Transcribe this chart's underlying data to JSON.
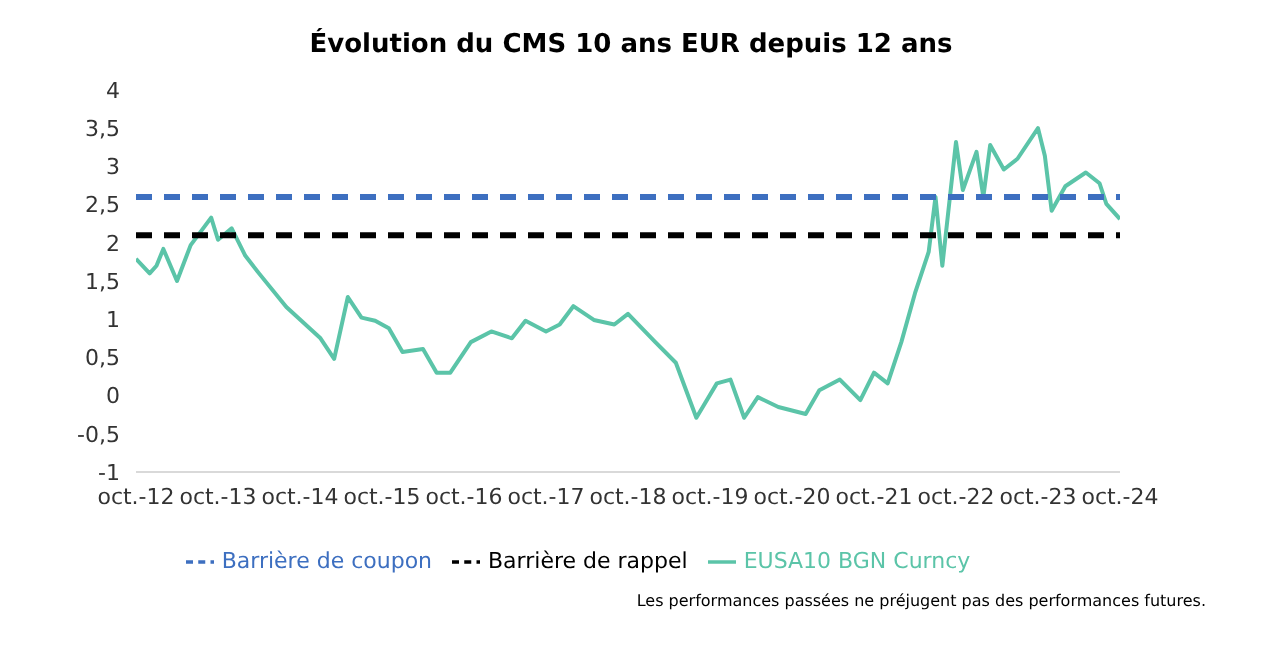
{
  "chart_data": {
    "type": "line",
    "title": "Évolution du CMS 10 ans EUR depuis 12 ans",
    "annotations": [
      "Les performances passées ne préjugent pas des performances futures."
    ],
    "ylim": [
      -1,
      4
    ],
    "yticks": [
      -1,
      {
        "value": -0.5,
        "label": "-0,5"
      },
      0,
      {
        "value": 0.5,
        "label": "0,5"
      },
      1,
      {
        "value": 1.5,
        "label": "1,5"
      },
      2,
      {
        "value": 2.5,
        "label": "2,5"
      },
      3,
      {
        "value": 3.5,
        "label": "3,5"
      },
      4
    ],
    "xlim": [
      "2012-10",
      "2024-10"
    ],
    "xticks": [
      {
        "value": "2012-10",
        "label": "oct.-12"
      },
      {
        "value": "2013-10",
        "label": "oct.-13"
      },
      {
        "value": "2014-10",
        "label": "oct.-14"
      },
      {
        "value": "2015-10",
        "label": "oct.-15"
      },
      {
        "value": "2016-10",
        "label": "oct.-16"
      },
      {
        "value": "2017-10",
        "label": "oct.-17"
      },
      {
        "value": "2018-10",
        "label": "oct.-18"
      },
      {
        "value": "2019-10",
        "label": "oct.-19"
      },
      {
        "value": "2020-10",
        "label": "oct.-20"
      },
      {
        "value": "2021-10",
        "label": "oct.-21"
      },
      {
        "value": "2022-10",
        "label": "oct.-22"
      },
      {
        "value": "2023-10",
        "label": "oct.-23"
      },
      {
        "value": "2024-10",
        "label": "oct.-24"
      }
    ],
    "grid": false,
    "legend": "bottom",
    "marker": "none",
    "series": [
      {
        "name": "EUSA10 BGN Curncy",
        "color": "#5bc4a8",
        "line_style": "solid",
        "x": [
          "2012-10",
          "2012-12",
          "2013-01",
          "2013-02",
          "2013-04",
          "2013-06",
          "2013-09",
          "2013-10",
          "2013-12",
          "2014-02",
          "2014-04",
          "2014-08",
          "2015-01",
          "2015-03",
          "2015-05",
          "2015-07",
          "2015-09",
          "2015-11",
          "2016-01",
          "2016-04",
          "2016-06",
          "2016-08",
          "2016-11",
          "2017-02",
          "2017-05",
          "2017-07",
          "2017-10",
          "2017-12",
          "2018-02",
          "2018-05",
          "2018-08",
          "2018-10",
          "2019-02",
          "2019-05",
          "2019-08",
          "2019-11",
          "2020-01",
          "2020-03",
          "2020-05",
          "2020-08",
          "2020-12",
          "2021-02",
          "2021-05",
          "2021-08",
          "2021-10",
          "2021-12",
          "2022-02",
          "2022-04",
          "2022-06",
          "2022-07",
          "2022-08",
          "2022-10",
          "2022-11",
          "2023-01",
          "2023-02",
          "2023-03",
          "2023-05",
          "2023-07",
          "2023-10",
          "2023-11",
          "2023-12",
          "2024-02",
          "2024-05",
          "2024-07",
          "2024-08",
          "2024-10"
        ],
        "values": [
          1.79,
          1.6,
          1.7,
          1.92,
          1.5,
          1.97,
          2.33,
          2.04,
          2.19,
          1.83,
          1.6,
          1.16,
          0.75,
          0.48,
          1.29,
          1.02,
          0.98,
          0.88,
          0.57,
          0.61,
          0.3,
          0.3,
          0.7,
          0.84,
          0.75,
          0.98,
          0.84,
          0.93,
          1.17,
          0.99,
          0.93,
          1.07,
          0.7,
          0.43,
          -0.29,
          0.16,
          0.21,
          -0.29,
          -0.02,
          -0.15,
          -0.24,
          0.07,
          0.21,
          -0.06,
          0.3,
          0.16,
          0.7,
          1.34,
          1.88,
          2.6,
          1.7,
          3.32,
          2.69,
          3.19,
          2.6,
          3.28,
          2.96,
          3.1,
          3.5,
          3.14,
          2.42,
          2.74,
          2.92,
          2.78,
          2.51,
          2.31
        ]
      },
      {
        "name": "Barrière de coupon",
        "color": "#3d6fc0",
        "line_style": "dashed",
        "x": [
          "2012-10",
          "2024-10"
        ],
        "values": [
          2.6,
          2.6
        ]
      },
      {
        "name": "Barrière de rappel",
        "color": "#000000",
        "line_style": "dashed",
        "x": [
          "2012-10",
          "2024-10"
        ],
        "values": [
          2.1,
          2.1
        ]
      }
    ]
  }
}
